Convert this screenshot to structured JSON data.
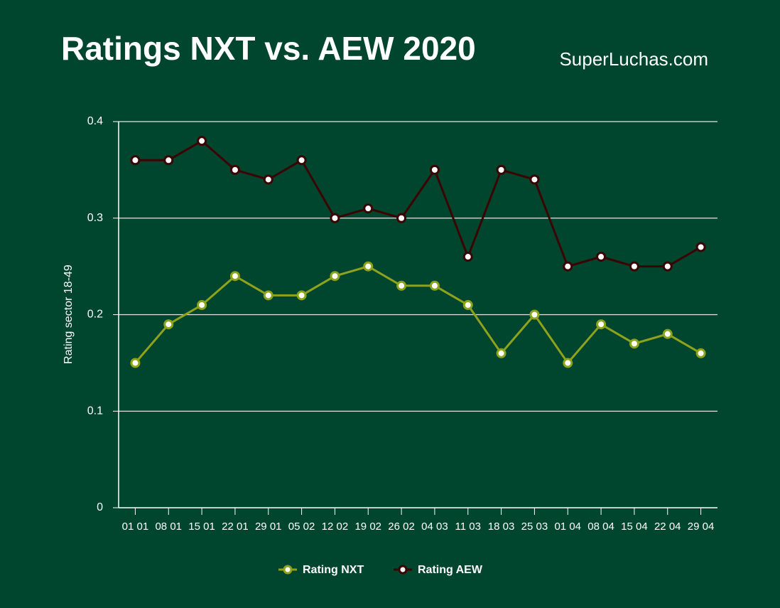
{
  "chart_data": {
    "type": "line",
    "title": "Ratings NXT vs. AEW 2020",
    "source": "SuperLuchas.com",
    "y_label": "Rating sector 18-49",
    "categories": [
      "01 01",
      "08 01",
      "15 01",
      "22 01",
      "29 01",
      "05 02",
      "12 02",
      "19 02",
      "26 02",
      "04 03",
      "11 03",
      "18 03",
      "25 03",
      "01 04",
      "08 04",
      "15 04",
      "22 04",
      "29 04"
    ],
    "series": [
      {
        "name": "Rating NXT",
        "color": "#8ea31b",
        "values": [
          0.15,
          0.19,
          0.21,
          0.24,
          0.22,
          0.22,
          0.24,
          0.25,
          0.23,
          0.23,
          0.21,
          0.16,
          0.2,
          0.15,
          0.19,
          0.17,
          0.18,
          0.16
        ]
      },
      {
        "name": "Rating AEW",
        "color": "#3b0404",
        "values": [
          0.36,
          0.36,
          0.38,
          0.35,
          0.34,
          0.36,
          0.3,
          0.31,
          0.3,
          0.35,
          0.26,
          0.35,
          0.34,
          0.25,
          0.26,
          0.25,
          0.25,
          0.27
        ]
      }
    ],
    "ylim": [
      0,
      0.4
    ],
    "yticks": [
      0,
      0.1,
      0.2,
      0.3,
      0.4
    ],
    "grid": true,
    "legend": "bottom"
  }
}
